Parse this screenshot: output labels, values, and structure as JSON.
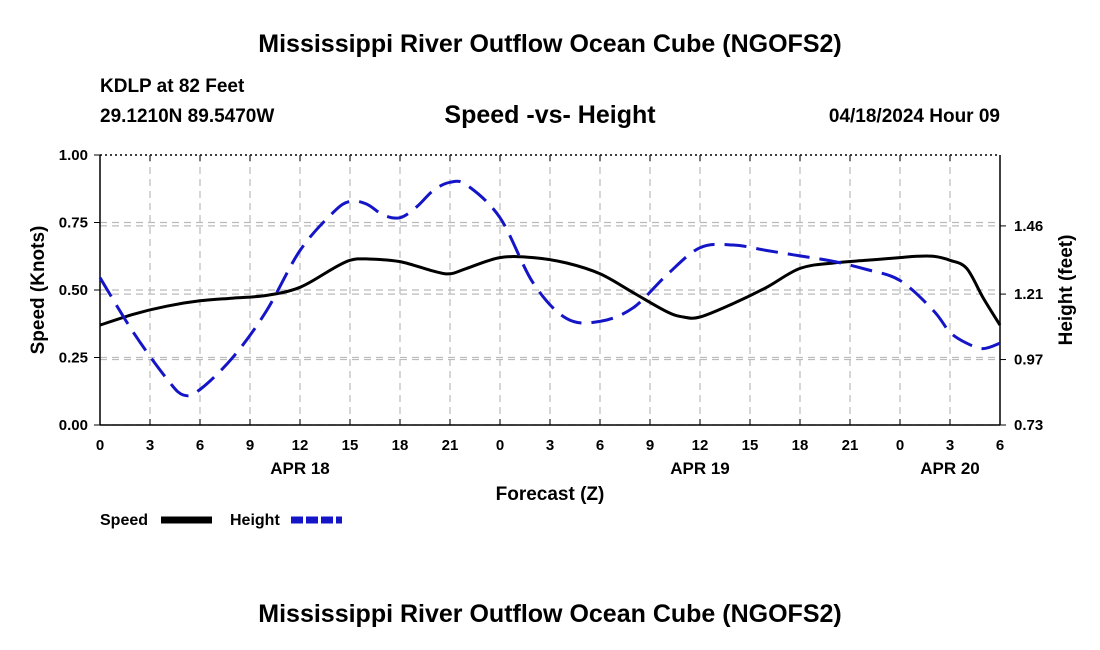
{
  "header": {
    "title": "Mississippi River Outflow Ocean Cube (NGOFS2)",
    "station": "KDLP at 82 Feet",
    "coords": "29.1210N  89.5470W",
    "subtitle": "Speed -vs- Height",
    "datetime": "04/18/2024 Hour 09"
  },
  "footer": {
    "title": "Mississippi River Outflow Ocean Cube (NGOFS2)"
  },
  "colors": {
    "speed": "#000000",
    "height": "#1515c8",
    "grid": "#bbbbbb"
  },
  "chart_data": {
    "type": "line",
    "xlabel": "Forecast (Z)",
    "ylabel": "Speed (Knots)",
    "y2label": "Height (feet)",
    "ylim": [
      0,
      1
    ],
    "y2lim": [
      0.73,
      1.72
    ],
    "xlim": [
      0,
      54
    ],
    "yticks": [
      "0.00",
      "0.25",
      "0.50",
      "0.75",
      "1.00"
    ],
    "ytick_values": [
      0,
      0.25,
      0.5,
      0.75,
      1.0
    ],
    "y2ticks": [
      "0.73",
      "0.97",
      "1.21",
      "1.46"
    ],
    "y2tick_values": [
      0.73,
      0.97,
      1.21,
      1.46
    ],
    "xticks": [
      "0",
      "3",
      "6",
      "9",
      "12",
      "15",
      "18",
      "21",
      "0",
      "3",
      "6",
      "9",
      "12",
      "15",
      "18",
      "21",
      "0",
      "3",
      "6"
    ],
    "date_labels": [
      {
        "text": "APR 18",
        "hour": 12
      },
      {
        "text": "APR 19",
        "hour": 36
      },
      {
        "text": "APR 20",
        "hour": 51
      }
    ],
    "grid": true,
    "legend_position": "bottom-left",
    "series": [
      {
        "name": "Speed",
        "axis": "left",
        "style": "solid",
        "x": [
          0,
          2,
          4,
          6,
          8,
          10,
          12,
          14,
          15,
          16,
          18,
          20,
          21,
          22,
          24,
          26,
          28,
          30,
          32,
          34,
          35,
          36,
          38,
          40,
          42,
          44,
          46,
          48,
          49,
          50,
          51,
          52,
          53,
          54
        ],
        "values": [
          0.37,
          0.41,
          0.44,
          0.46,
          0.47,
          0.48,
          0.51,
          0.58,
          0.61,
          0.615,
          0.605,
          0.57,
          0.56,
          0.58,
          0.62,
          0.62,
          0.6,
          0.56,
          0.49,
          0.42,
          0.4,
          0.4,
          0.45,
          0.51,
          0.58,
          0.6,
          0.61,
          0.62,
          0.625,
          0.625,
          0.61,
          0.58,
          0.47,
          0.37
        ]
      },
      {
        "name": "Height",
        "axis": "right",
        "style": "dashed",
        "x": [
          0,
          2,
          4,
          5,
          6,
          8,
          10,
          12,
          14,
          15,
          16,
          17,
          18,
          19,
          20,
          21,
          22,
          24,
          26,
          28,
          30,
          32,
          34,
          36,
          38,
          40,
          42,
          44,
          46,
          48,
          50,
          51,
          52,
          53,
          54
        ],
        "values": [
          1.27,
          1.07,
          0.9,
          0.84,
          0.86,
          0.98,
          1.15,
          1.37,
          1.51,
          1.55,
          1.54,
          1.5,
          1.49,
          1.53,
          1.59,
          1.62,
          1.61,
          1.49,
          1.25,
          1.12,
          1.11,
          1.16,
          1.28,
          1.38,
          1.39,
          1.37,
          1.35,
          1.33,
          1.3,
          1.26,
          1.15,
          1.07,
          1.03,
          1.01,
          1.03
        ]
      }
    ]
  },
  "legend": {
    "speed_label": "Speed",
    "height_label": "Height"
  }
}
